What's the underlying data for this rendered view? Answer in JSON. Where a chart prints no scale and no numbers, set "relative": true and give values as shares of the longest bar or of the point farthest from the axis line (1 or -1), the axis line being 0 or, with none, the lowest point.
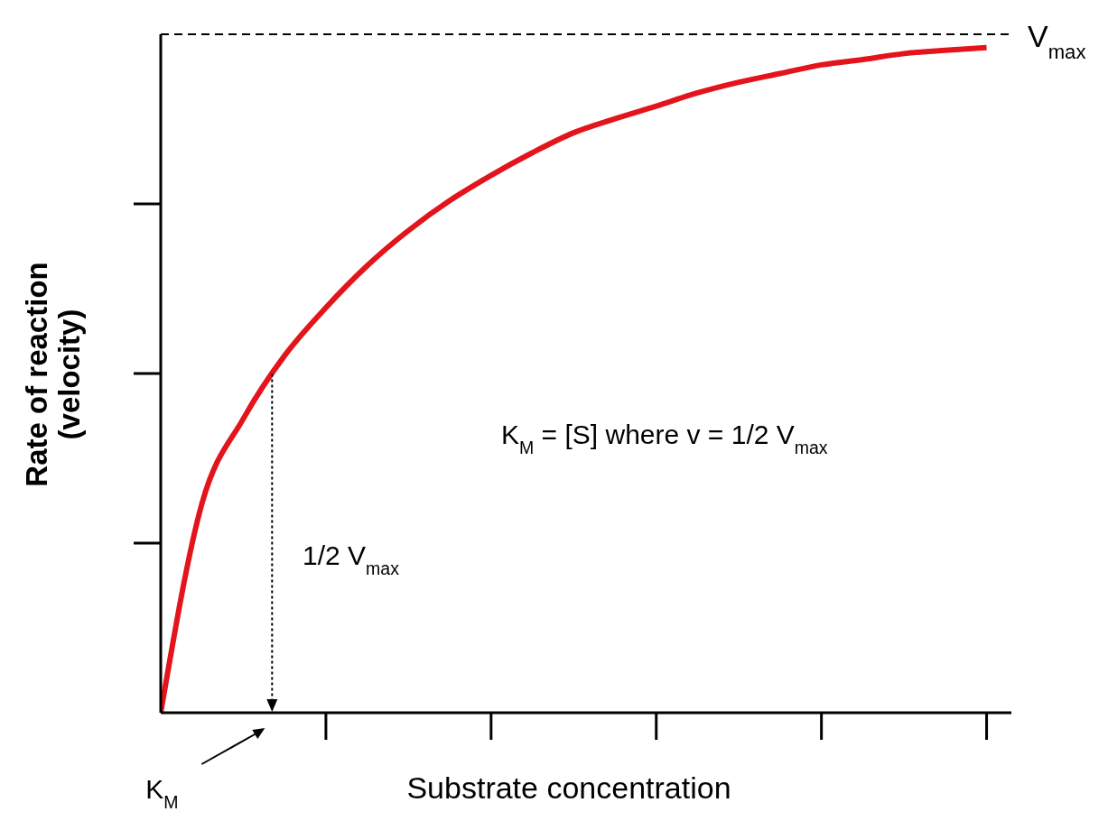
{
  "chart_data": {
    "type": "line",
    "relative": true,
    "xlabel": "Substrate concentration",
    "ylabel": "Rate of reaction\n(velocity)",
    "categories": [
      null,
      null,
      null,
      null,
      null,
      null,
      null,
      null,
      null,
      null,
      null,
      null,
      null,
      null,
      null,
      null,
      null,
      null,
      null,
      null,
      null
    ],
    "values": [
      0,
      0.315,
      0.442,
      0.537,
      0.609,
      0.672,
      0.725,
      0.77,
      0.808,
      0.842,
      0.872,
      0.893,
      0.912,
      0.932,
      0.948,
      0.961,
      0.974,
      0.982,
      0.991,
      0.996,
      1
    ],
    "color": "#e3141b",
    "marker": "none",
    "ref_lines": [
      {
        "axis": "y",
        "value": 1.02,
        "label": "V$_{max}$",
        "line_style": "dashed",
        "color": "#000000"
      }
    ],
    "annotations": [
      "1/2 V$_{max}$",
      "K$_{M}$ = [S]  where v = 1/2 V$_{max}$",
      "K$_{M}$"
    ]
  }
}
